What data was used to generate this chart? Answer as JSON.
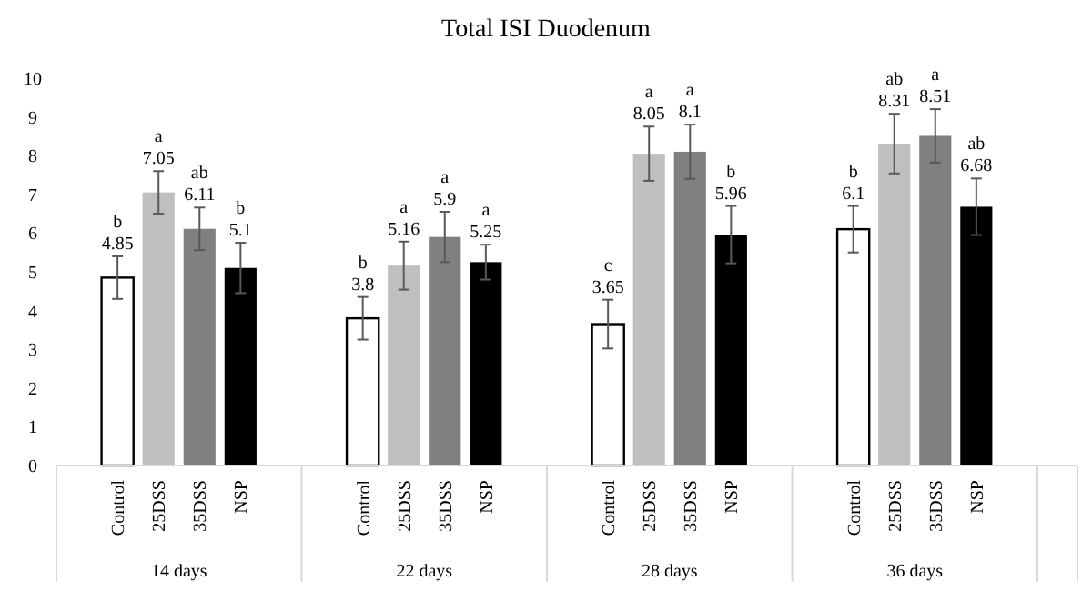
{
  "chart_data": {
    "type": "bar",
    "title": "Total ISI Duodenum",
    "categories": [
      "14 days",
      "22 days",
      "28 days",
      "36 days"
    ],
    "ylim": [
      0,
      10
    ],
    "yticks": [
      0,
      1,
      2,
      3,
      4,
      5,
      6,
      7,
      8,
      9,
      10
    ],
    "grid": false,
    "series": [
      {
        "name": "Control",
        "color": "#ffffff",
        "values": [
          4.85,
          3.8,
          3.65,
          6.1
        ],
        "errors": [
          0.55,
          0.55,
          0.63,
          0.6
        ],
        "value_labels": [
          "b\n4.85",
          "b\n3.8",
          "c\n3.65",
          "b\n6.1"
        ]
      },
      {
        "name": "25DSS",
        "color": "#bfbfbf",
        "values": [
          7.05,
          5.16,
          8.05,
          8.31
        ],
        "errors": [
          0.55,
          0.62,
          0.7,
          0.77
        ],
        "value_labels": [
          "a\n7.05",
          "a\n5.16",
          "a\n8.05",
          "ab\n8.31"
        ]
      },
      {
        "name": "35DSS",
        "color": "#808080",
        "values": [
          6.11,
          5.9,
          8.1,
          8.51
        ],
        "errors": [
          0.55,
          0.65,
          0.7,
          0.69
        ],
        "value_labels": [
          "ab\n6.11",
          "a\n5.9",
          "a\n8.1",
          "a\n8.51"
        ]
      },
      {
        "name": "NSP",
        "color": "#000000",
        "values": [
          5.1,
          5.25,
          5.96,
          6.68
        ],
        "errors": [
          0.65,
          0.45,
          0.74,
          0.73
        ],
        "value_labels": [
          "b\n5.1",
          "a\n5.25",
          "b\n5.96",
          "ab\n6.68"
        ]
      }
    ]
  }
}
